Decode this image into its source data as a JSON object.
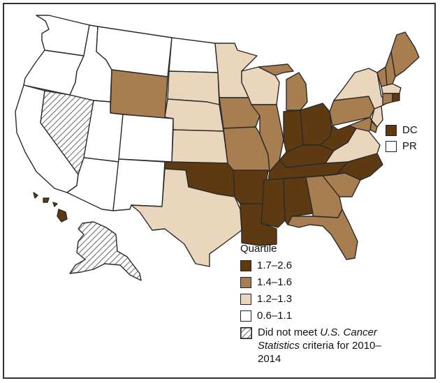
{
  "legend": {
    "title": "Quartile",
    "items": [
      {
        "label": "1.7–2.6",
        "color": "#5e3a12"
      },
      {
        "label": "1.4–1.6",
        "color": "#a87d50"
      },
      {
        "label": "1.2–1.3",
        "color": "#ead6bd"
      },
      {
        "label": "0.6–1.1",
        "color": "#ffffff"
      }
    ],
    "not_met": {
      "prefix": "Did not meet ",
      "italic": "U.S. Cancer Statistics",
      "suffix": " criteria for 2010–2014"
    }
  },
  "extras": [
    {
      "label": "DC",
      "quartile": 0
    },
    {
      "label": "PR",
      "quartile": 3
    }
  ],
  "states": [
    {
      "name": "WA",
      "quartile": 3
    },
    {
      "name": "OR",
      "quartile": 3
    },
    {
      "name": "CA",
      "quartile": 3
    },
    {
      "name": "NV",
      "quartile": "hatch"
    },
    {
      "name": "ID",
      "quartile": 3
    },
    {
      "name": "MT",
      "quartile": 3
    },
    {
      "name": "WY",
      "quartile": 1
    },
    {
      "name": "UT",
      "quartile": 3
    },
    {
      "name": "AZ",
      "quartile": 3
    },
    {
      "name": "CO",
      "quartile": 3
    },
    {
      "name": "NM",
      "quartile": 3
    },
    {
      "name": "ND",
      "quartile": 3
    },
    {
      "name": "SD",
      "quartile": 2
    },
    {
      "name": "NE",
      "quartile": 2
    },
    {
      "name": "KS",
      "quartile": 2
    },
    {
      "name": "OK",
      "quartile": 0
    },
    {
      "name": "TX",
      "quartile": 2
    },
    {
      "name": "MN",
      "quartile": 2
    },
    {
      "name": "IA",
      "quartile": 1
    },
    {
      "name": "MO",
      "quartile": 1
    },
    {
      "name": "AR",
      "quartile": 0
    },
    {
      "name": "LA",
      "quartile": 0
    },
    {
      "name": "WI",
      "quartile": 2
    },
    {
      "name": "IL",
      "quartile": 1
    },
    {
      "name": "MI",
      "quartile": 1
    },
    {
      "name": "IN",
      "quartile": 0
    },
    {
      "name": "OH",
      "quartile": 0
    },
    {
      "name": "KY",
      "quartile": 0
    },
    {
      "name": "TN",
      "quartile": 0
    },
    {
      "name": "MS",
      "quartile": 0
    },
    {
      "name": "AL",
      "quartile": 0
    },
    {
      "name": "GA",
      "quartile": 1
    },
    {
      "name": "FL",
      "quartile": 1
    },
    {
      "name": "SC",
      "quartile": 1
    },
    {
      "name": "NC",
      "quartile": 0
    },
    {
      "name": "VA",
      "quartile": 2
    },
    {
      "name": "WV",
      "quartile": 0
    },
    {
      "name": "PA",
      "quartile": 1
    },
    {
      "name": "NY",
      "quartile": 2
    },
    {
      "name": "ME",
      "quartile": 1
    },
    {
      "name": "NH",
      "quartile": 1
    },
    {
      "name": "VT",
      "quartile": 1
    },
    {
      "name": "MA",
      "quartile": 2
    },
    {
      "name": "RI",
      "quartile": 0
    },
    {
      "name": "CT",
      "quartile": 1
    },
    {
      "name": "NJ",
      "quartile": 2
    },
    {
      "name": "DE",
      "quartile": 1
    },
    {
      "name": "MD",
      "quartile": 1
    },
    {
      "name": "AK",
      "quartile": "hatch"
    },
    {
      "name": "HI",
      "quartile": 0
    }
  ]
}
